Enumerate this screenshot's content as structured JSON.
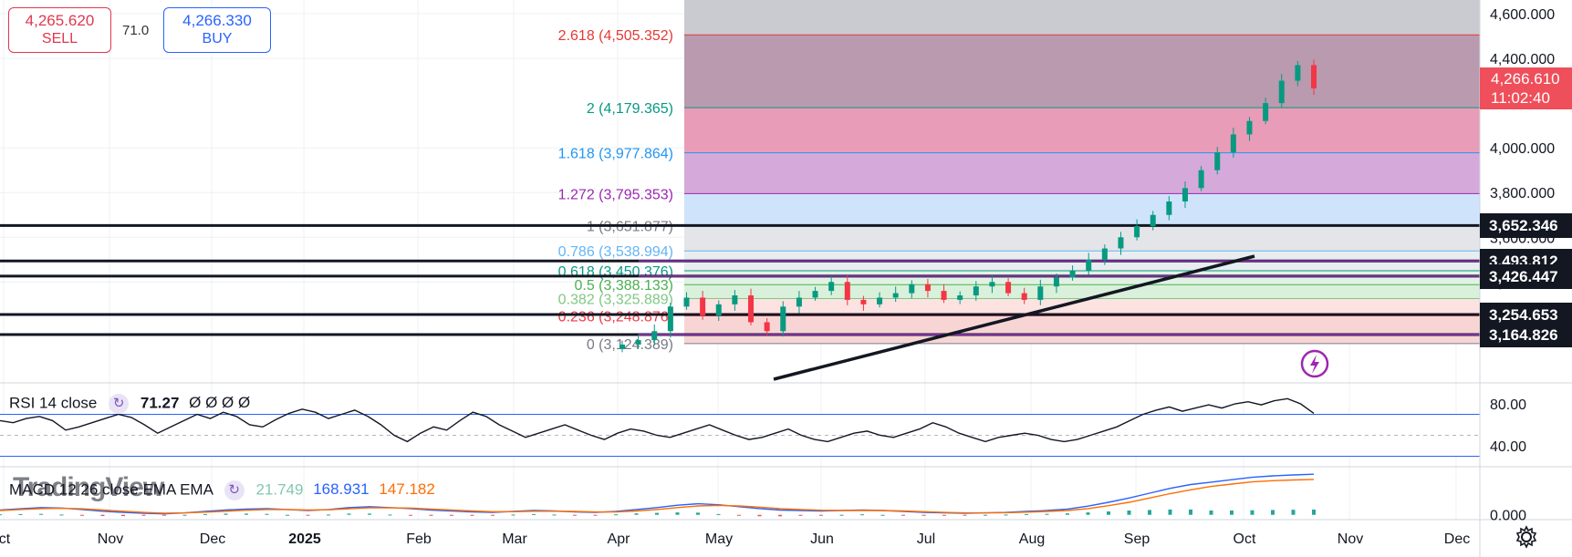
{
  "order_panel": {
    "sell_price": "4,265.620",
    "sell_label": "SELL",
    "spread": "71.0",
    "buy_price": "4,266.330",
    "buy_label": "BUY"
  },
  "price_axis": [
    "4,600.000",
    "4,400.000",
    "4,000.000",
    "3,800.000",
    "3,600.000",
    "3,400.000"
  ],
  "price_axis_values": [
    4600,
    4400,
    4000,
    3800,
    3600,
    3400
  ],
  "last_price": {
    "value": "4,266.610",
    "countdown": "11:02:40"
  },
  "level_badges": [
    {
      "text": "3,652.346",
      "value": 3652.346
    },
    {
      "text": "3,493.812",
      "value": 3493.812
    },
    {
      "text": "3,426.447",
      "value": 3426.447
    },
    {
      "text": "3,254.653",
      "value": 3254.653
    },
    {
      "text": "3,164.826",
      "value": 3164.826
    }
  ],
  "fib_levels": [
    {
      "label": "2.618 (4,505.352)",
      "ratio": 2.618,
      "price": 4505.352,
      "color": "#e53935"
    },
    {
      "label": "2 (4,179.365)",
      "ratio": 2,
      "price": 4179.365,
      "color": "#089981"
    },
    {
      "label": "1.618 (3,977.864)",
      "ratio": 1.618,
      "price": 3977.864,
      "color": "#2196f3"
    },
    {
      "label": "1.272 (3,795.353)",
      "ratio": 1.272,
      "price": 3795.353,
      "color": "#9c27b0"
    },
    {
      "label": "1 (3,651.877)",
      "ratio": 1,
      "price": 3651.877,
      "color": "#787b86"
    },
    {
      "label": "0.786 (3,538.994)",
      "ratio": 0.786,
      "price": 3538.994,
      "color": "#64b5f6"
    },
    {
      "label": "0.618 (3,450.376)",
      "ratio": 0.618,
      "price": 3450.376,
      "color": "#089981"
    },
    {
      "label": "0.5 (3,388.133)",
      "ratio": 0.5,
      "price": 3388.133,
      "color": "#4caf50"
    },
    {
      "label": "0.382 (3,325.889)",
      "ratio": 0.382,
      "price": 3325.889,
      "color": "#81c784"
    },
    {
      "label": "0.236 (3,248.876)",
      "ratio": 0.236,
      "price": 3248.876,
      "color": "#f23645"
    },
    {
      "label": "0 (3,124.389)",
      "ratio": 0,
      "price": 3124.389,
      "color": "#787b86"
    }
  ],
  "time_axis": [
    "ct",
    "Nov",
    "Dec",
    "2025",
    "Feb",
    "Mar",
    "Apr",
    "May",
    "Jun",
    "Jul",
    "Aug",
    "Sep",
    "Oct",
    "Nov",
    "Dec"
  ],
  "rsi": {
    "name": "RSI 14 close",
    "value": "71.27",
    "extras": "Ø Ø Ø Ø",
    "axis": [
      "80.00",
      "40.00"
    ]
  },
  "macd": {
    "name": "MACD 12 26 close EMA EMA",
    "hist": "21.749",
    "macd_line": "168.931",
    "signal": "147.182",
    "axis": [
      "0.000"
    ],
    "hist_color": "#26a69a",
    "macd_color": "#2962ff",
    "signal_color": "#ff6d00"
  },
  "watermark": "TradingView",
  "colors": {
    "up": "#089981",
    "down": "#f23645",
    "accent": "#2962ff",
    "rsi_line": "#131722"
  },
  "chart_data": {
    "type": "candlestick",
    "symbol_price_now": 4266.61,
    "ylim": [
      3110,
      4650
    ],
    "x_categories": [
      "Oct",
      "Nov",
      "Dec",
      "2025",
      "Feb",
      "Mar",
      "Apr",
      "May",
      "Jun",
      "Jul",
      "Aug",
      "Sep",
      "Oct",
      "Nov",
      "Dec"
    ],
    "closes_weekly": [
      3120,
      3140,
      3180,
      3290,
      3330,
      3250,
      3300,
      3340,
      3220,
      3180,
      3290,
      3330,
      3360,
      3400,
      3320,
      3300,
      3330,
      3350,
      3390,
      3360,
      3320,
      3340,
      3380,
      3400,
      3350,
      3320,
      3380,
      3420,
      3450,
      3500,
      3550,
      3600,
      3650,
      3700,
      3760,
      3820,
      3900,
      3980,
      4060,
      4120,
      4200,
      4300,
      4370,
      4266
    ],
    "rsi_values": [
      64,
      62,
      66,
      68,
      64,
      55,
      58,
      62,
      66,
      70,
      67,
      60,
      52,
      58,
      64,
      70,
      66,
      72,
      68,
      60,
      58,
      65,
      71,
      75,
      72,
      66,
      70,
      74,
      68,
      60,
      50,
      44,
      52,
      58,
      55,
      64,
      72,
      68,
      60,
      54,
      48,
      52,
      56,
      60,
      55,
      50,
      46,
      52,
      56,
      54,
      50,
      48,
      52,
      56,
      60,
      55,
      50,
      46,
      48,
      52,
      56,
      50,
      46,
      44,
      48,
      52,
      54,
      50,
      48,
      52,
      56,
      62,
      58,
      52,
      48,
      44,
      48,
      50,
      52,
      50,
      46,
      44,
      46,
      50,
      54,
      58,
      64,
      70,
      74,
      77,
      73,
      76,
      79,
      76,
      80,
      82,
      79,
      83,
      85,
      80,
      71
    ],
    "macd_values": [
      20,
      25,
      30,
      28,
      22,
      15,
      10,
      6,
      4,
      8,
      14,
      20,
      24,
      26,
      22,
      18,
      22,
      30,
      34,
      30,
      26,
      20,
      16,
      12,
      10,
      14,
      18,
      16,
      12,
      10,
      14,
      22,
      30,
      40,
      46,
      42,
      34,
      26,
      20,
      18,
      16,
      18,
      20,
      18,
      14,
      10,
      8,
      6,
      8,
      10,
      14,
      18,
      24,
      36,
      52,
      70,
      90,
      110,
      126,
      136,
      146,
      156,
      162,
      166,
      168.93
    ],
    "signal_values": [
      18,
      22,
      26,
      27,
      25,
      20,
      15,
      10,
      7,
      8,
      11,
      15,
      19,
      22,
      22,
      20,
      21,
      25,
      29,
      29,
      28,
      24,
      20,
      16,
      13,
      13,
      15,
      15,
      14,
      12,
      12,
      16,
      22,
      30,
      37,
      39,
      37,
      32,
      26,
      22,
      19,
      18,
      18,
      18,
      16,
      13,
      10,
      8,
      8,
      9,
      11,
      14,
      18,
      26,
      38,
      52,
      70,
      88,
      104,
      118,
      128,
      137,
      142,
      145,
      147.18
    ],
    "rsi_ylim": [
      20,
      100
    ],
    "rsi_levels": [
      70,
      30
    ],
    "macd_ylim": [
      -20,
      200
    ]
  }
}
